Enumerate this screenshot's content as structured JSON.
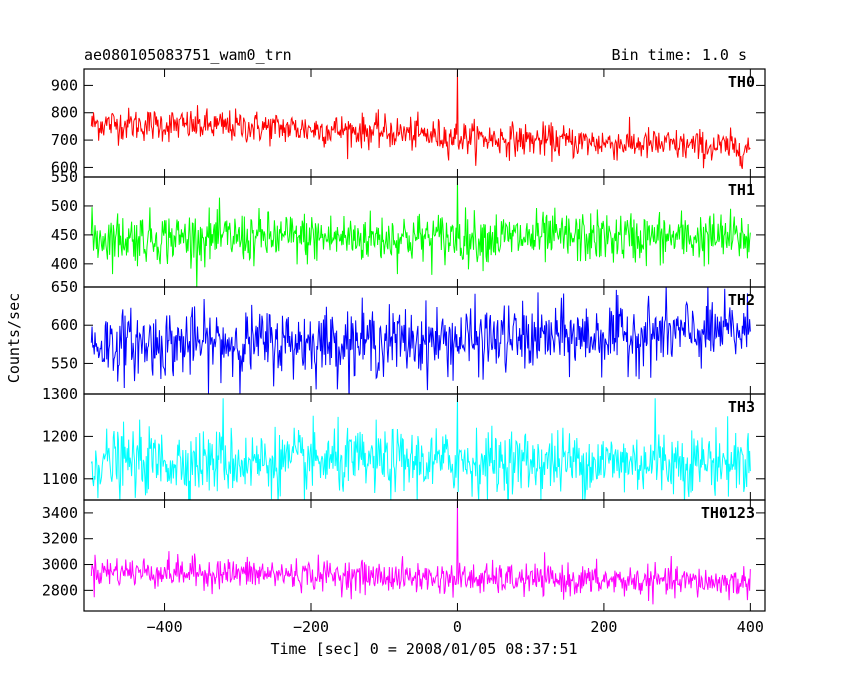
{
  "header": {
    "title": "ae080105083751_wam0_trn",
    "bin_time": "Bin time: 1.0 s"
  },
  "chart_data": {
    "type": "line",
    "xlabel": "Time [sec] 0 = 2008/01/05 08:37:51",
    "ylabel": "Counts/sec",
    "xlim": [
      -510,
      420
    ],
    "x_ticks": [
      -400,
      -200,
      0,
      200,
      400
    ],
    "x_tick_labels": [
      "−400",
      "−200",
      "0",
      "200",
      "400"
    ],
    "panels": [
      {
        "name": "TH0",
        "color": "#ff0000",
        "ylim": [
          565,
          960
        ],
        "yticks": [
          600,
          700,
          800,
          900
        ],
        "ytick_labels": [
          "600",
          "700",
          "800",
          "900"
        ],
        "trend": [
          [
            -500,
            760
          ],
          [
            -300,
            750
          ],
          [
            -100,
            730
          ],
          [
            0,
            710
          ],
          [
            200,
            690
          ],
          [
            400,
            670
          ]
        ],
        "noise_sd": 30,
        "spikes": [
          [
            0,
            955
          ]
        ],
        "x_range": [
          -500,
          400
        ]
      },
      {
        "name": "TH1",
        "color": "#00ff00",
        "ylim": [
          360,
          550
        ],
        "yticks": [
          400,
          450,
          500,
          550
        ],
        "ytick_labels": [
          "400",
          "450",
          "500",
          "550"
        ],
        "trend": [
          [
            -500,
            445
          ],
          [
            400,
            445
          ]
        ],
        "noise_sd": 22,
        "spikes": [
          [
            0,
            548
          ]
        ],
        "x_range": [
          -500,
          400
        ]
      },
      {
        "name": "TH2",
        "color": "#0000ff",
        "ylim": [
          510,
          650
        ],
        "yticks": [
          550,
          600,
          650
        ],
        "ytick_labels": [
          "550",
          "600",
          "650"
        ],
        "trend": [
          [
            -500,
            575
          ],
          [
            0,
            580
          ],
          [
            400,
            592
          ]
        ],
        "noise_sd": 22,
        "spikes": [],
        "x_range": [
          -500,
          400
        ]
      },
      {
        "name": "TH3",
        "color": "#00ffff",
        "ylim": [
          1050,
          1300
        ],
        "yticks": [
          1100,
          1200,
          1300
        ],
        "ytick_labels": [
          "1100",
          "1200",
          "1300"
        ],
        "trend": [
          [
            -500,
            1140
          ],
          [
            400,
            1140
          ]
        ],
        "noise_sd": 38,
        "spikes": [
          [
            0,
            1295
          ],
          [
            -320,
            1290
          ],
          [
            270,
            1290
          ]
        ],
        "x_range": [
          -500,
          400
        ]
      },
      {
        "name": "TH0123",
        "color": "#ff00ff",
        "ylim": [
          2640,
          3500
        ],
        "yticks": [
          2800,
          3000,
          3200,
          3400
        ],
        "ytick_labels": [
          "2800",
          "3000",
          "3200",
          "3400"
        ],
        "trend": [
          [
            -500,
            2950
          ],
          [
            -200,
            2920
          ],
          [
            0,
            2890
          ],
          [
            400,
            2860
          ]
        ],
        "noise_sd": 60,
        "spikes": [
          [
            0,
            3490
          ]
        ],
        "x_range": [
          -500,
          400
        ]
      }
    ]
  }
}
